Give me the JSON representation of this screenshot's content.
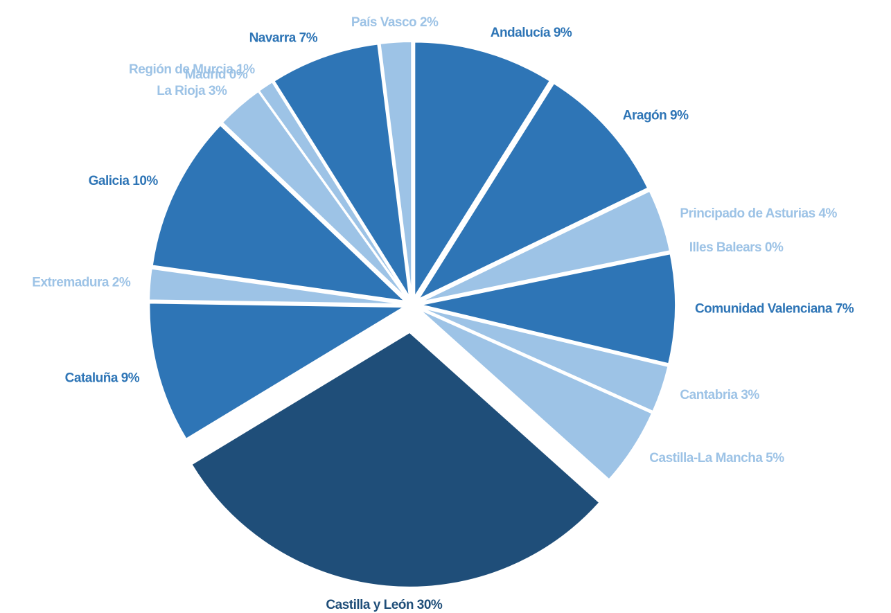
{
  "chart_data": {
    "type": "pie",
    "categories": [
      "Andalucía",
      "Aragón",
      "Principado de Asturias",
      "Illes Balears",
      "Comunidad Valenciana",
      "Cantabria",
      "Castilla-La Mancha",
      "Castilla y León",
      "Cataluña",
      "Extremadura",
      "Galicia",
      "La Rioja",
      "Madrid",
      "Región de Murcia",
      "Navarra",
      "País Vasco"
    ],
    "values": [
      9,
      9,
      4,
      0,
      7,
      3,
      5,
      30,
      9,
      2,
      10,
      3,
      0,
      1,
      7,
      2
    ],
    "value_labels": [
      "9%",
      "9%",
      "4%",
      "0%",
      "7%",
      "3%",
      "5%",
      "30%",
      "9%",
      "2%",
      "10%",
      "3%",
      "0%",
      "1%",
      "7%",
      "2%"
    ],
    "colors": [
      "#2e75b6",
      "#2e75b6",
      "#9dc3e6",
      "#9dc3e6",
      "#2e75b6",
      "#9dc3e6",
      "#9dc3e6",
      "#1f4e79",
      "#2e75b6",
      "#9dc3e6",
      "#2e75b6",
      "#9dc3e6",
      "#9dc3e6",
      "#9dc3e6",
      "#2e75b6",
      "#9dc3e6"
    ]
  }
}
